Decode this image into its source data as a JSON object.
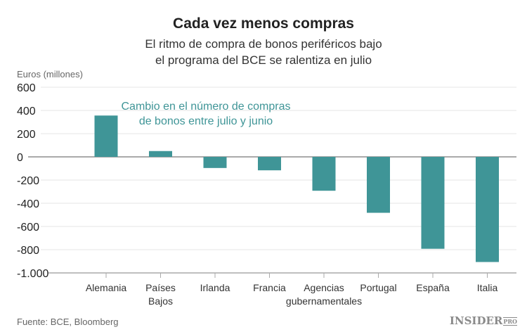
{
  "title": "Cada vez menos compras",
  "subtitle_line1": "El ritmo de compra de bonos periféricos bajo",
  "subtitle_line2": "el programa del BCE se ralentiza en julio",
  "source": "Fuente: BCE, Bloomberg",
  "logo": {
    "text": "INSIDER",
    "badge": "PRO"
  },
  "chart_data": {
    "type": "bar",
    "title": "Cada vez menos compras",
    "ylabel": "Euros (millones)",
    "annotation": [
      "Cambio en el número de compras",
      "de bonos entre julio y junio"
    ],
    "categories": [
      [
        "Alemania"
      ],
      [
        "Países",
        "Bajos"
      ],
      [
        "Irlanda"
      ],
      [
        "Francia"
      ],
      [
        "Agencias",
        "gubernamentales"
      ],
      [
        "Portugal"
      ],
      [
        "España"
      ],
      [
        "Italia"
      ]
    ],
    "values": [
      356,
      50,
      -96,
      -116,
      -292,
      -482,
      -792,
      -906
    ],
    "ylim": [
      -1000,
      600
    ],
    "yticks": [
      600,
      400,
      200,
      0,
      -200,
      -400,
      -600,
      -800,
      -1000
    ],
    "ytick_labels": [
      "600",
      "400",
      "200",
      "0",
      "-200",
      "-400",
      "-600",
      "-800",
      "-1.000"
    ],
    "grid": true,
    "bar_color": "#3f9597",
    "annotation_color": "#3f9597"
  }
}
